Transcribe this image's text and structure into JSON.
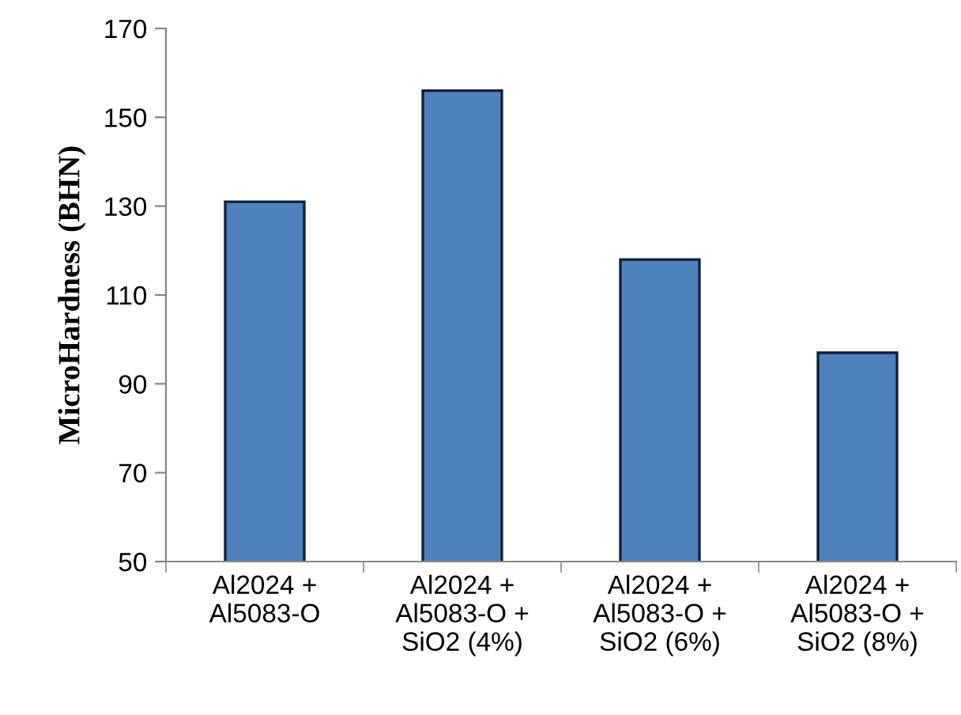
{
  "chart_data": {
    "type": "bar",
    "ylabel": "MicroHardness (BHN)",
    "categories": [
      "Al2024 +\nAl5083-O",
      "Al2024 +\nAl5083-O +\nSiO2 (4%)",
      "Al2024 +\nAl5083-O +\nSiO2 (6%)",
      "Al2024 +\nAl5083-O +\nSiO2 (8%)"
    ],
    "values": [
      131,
      156,
      118,
      97
    ],
    "color": "#4f81bd",
    "ylim": [
      50,
      170
    ],
    "yticks": [
      50,
      70,
      90,
      110,
      130,
      150,
      170
    ],
    "grid": false,
    "legend": false
  }
}
